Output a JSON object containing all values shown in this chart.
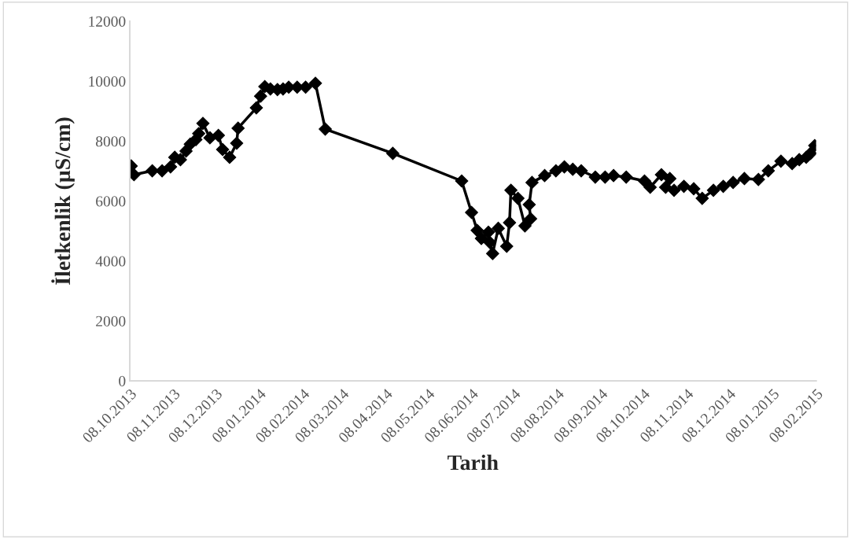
{
  "chart_data": {
    "type": "line",
    "xlabel": "Tarih",
    "ylabel": "İletkenlik (µS/cm)",
    "x": [
      "2013-10-09",
      "2013-10-11",
      "2013-10-24",
      "2013-10-31",
      "2013-11-06",
      "2013-11-09",
      "2013-11-13",
      "2013-11-17",
      "2013-11-20",
      "2013-11-24",
      "2013-11-26",
      "2013-11-29",
      "2013-12-04",
      "2013-12-10",
      "2013-12-13",
      "2013-12-18",
      "2013-12-23",
      "2013-12-24",
      "2014-01-06",
      "2014-01-09",
      "2014-01-12",
      "2014-01-16",
      "2014-01-21",
      "2014-01-25",
      "2014-01-29",
      "2014-02-04",
      "2014-02-10",
      "2014-02-17",
      "2014-02-24",
      "2014-04-13",
      "2014-06-01",
      "2014-06-08",
      "2014-06-12",
      "2014-06-15",
      "2014-06-20",
      "2014-06-21",
      "2014-06-23",
      "2014-06-27",
      "2014-07-03",
      "2014-07-05",
      "2014-07-06",
      "2014-07-11",
      "2014-07-16",
      "2014-07-20",
      "2014-07-19",
      "2014-07-21",
      "2014-07-30",
      "2014-08-07",
      "2014-08-13",
      "2014-08-19",
      "2014-08-25",
      "2014-09-04",
      "2014-09-11",
      "2014-09-17",
      "2014-09-26",
      "2014-10-09",
      "2014-10-13",
      "2014-10-21",
      "2014-10-27",
      "2014-10-24",
      "2014-10-30",
      "2014-11-06",
      "2014-11-13",
      "2014-11-19",
      "2014-11-27",
      "2014-12-04",
      "2014-12-11",
      "2014-12-19",
      "2014-12-29",
      "2015-01-05",
      "2015-01-14",
      "2015-01-22",
      "2015-01-27",
      "2015-02-01",
      "2015-02-04",
      "2015-02-07"
    ],
    "series": [
      {
        "color": "#000000",
        "values": [
          7170,
          6880,
          7010,
          7010,
          7140,
          7460,
          7380,
          7670,
          7900,
          8050,
          8250,
          8590,
          8110,
          8190,
          7720,
          7460,
          7930,
          8430,
          9110,
          9500,
          9820,
          9740,
          9720,
          9740,
          9800,
          9800,
          9800,
          9930,
          8400,
          7590,
          6670,
          5620,
          5020,
          4750,
          4960,
          4620,
          4250,
          5090,
          4490,
          5280,
          6360,
          6090,
          5170,
          5410,
          5880,
          6620,
          6850,
          7010,
          7140,
          7060,
          7010,
          6800,
          6800,
          6850,
          6800,
          6670,
          6460,
          6880,
          6750,
          6460,
          6360,
          6490,
          6410,
          6090,
          6360,
          6490,
          6620,
          6750,
          6720,
          7010,
          7330,
          7250,
          7380,
          7460,
          7590,
          7850
        ]
      }
    ],
    "xlim": [
      "2013-10-08",
      "2015-02-08"
    ],
    "xticks": [
      {
        "value": "2013-10-08",
        "label": "08.10.2013"
      },
      {
        "value": "2013-11-08",
        "label": "08.11.2013"
      },
      {
        "value": "2013-12-08",
        "label": "08.12.2013"
      },
      {
        "value": "2014-01-08",
        "label": "08.01.2014"
      },
      {
        "value": "2014-02-08",
        "label": "08.02.2014"
      },
      {
        "value": "2014-03-08",
        "label": "08.03.2014"
      },
      {
        "value": "2014-04-08",
        "label": "08.04.2014"
      },
      {
        "value": "2014-05-08",
        "label": "08.05.2014"
      },
      {
        "value": "2014-06-08",
        "label": "08.06.2014"
      },
      {
        "value": "2014-07-08",
        "label": "08.07.2014"
      },
      {
        "value": "2014-08-08",
        "label": "08.08.2014"
      },
      {
        "value": "2014-09-08",
        "label": "08.09.2014"
      },
      {
        "value": "2014-10-08",
        "label": "08.10.2014"
      },
      {
        "value": "2014-11-08",
        "label": "08.11.2014"
      },
      {
        "value": "2014-12-08",
        "label": "08.12.2014"
      },
      {
        "value": "2015-01-08",
        "label": "08.01.2015"
      },
      {
        "value": "2015-02-08",
        "label": "08.02.2015"
      }
    ],
    "ylim": [
      0,
      12000
    ],
    "yticks": [
      0,
      2000,
      4000,
      6000,
      8000,
      10000,
      12000
    ],
    "marker": "diamond",
    "line_style": "solid",
    "grid": false,
    "legend": false
  }
}
